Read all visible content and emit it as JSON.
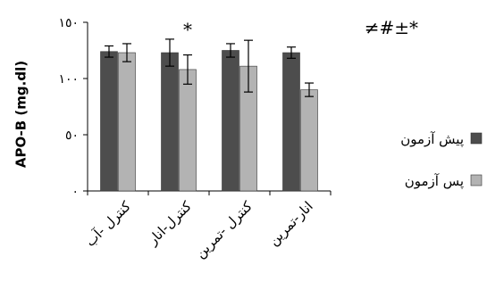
{
  "chart_data": {
    "type": "bar",
    "ylabel": "APO-B (mg.dl)",
    "ylim": [
      0,
      150
    ],
    "yticks": [
      {
        "value": 0,
        "label": "٠"
      },
      {
        "value": 50,
        "label": "٥٠"
      },
      {
        "value": 100,
        "label": "١٠٠"
      },
      {
        "value": 150,
        "label": "١٥٠"
      }
    ],
    "categories": [
      "کنترل -آب",
      "کنترل-انار",
      "کنترل -تمرین",
      "انار-تمرین"
    ],
    "series": [
      {
        "name": "پیش آزمون",
        "color": "#4d4d4d",
        "values": [
          124,
          123,
          125,
          123
        ],
        "errors": [
          5,
          12,
          6,
          5
        ]
      },
      {
        "name": "پس آزمون",
        "color": "#b3b3b3",
        "values": [
          123,
          108,
          111,
          90
        ],
        "errors": [
          8,
          13,
          23,
          6
        ]
      }
    ],
    "annotations": [
      {
        "text": "*",
        "category": 1
      },
      {
        "text": "≠#±*",
        "position": "top-right"
      }
    ],
    "legend": "right",
    "grid": false
  }
}
